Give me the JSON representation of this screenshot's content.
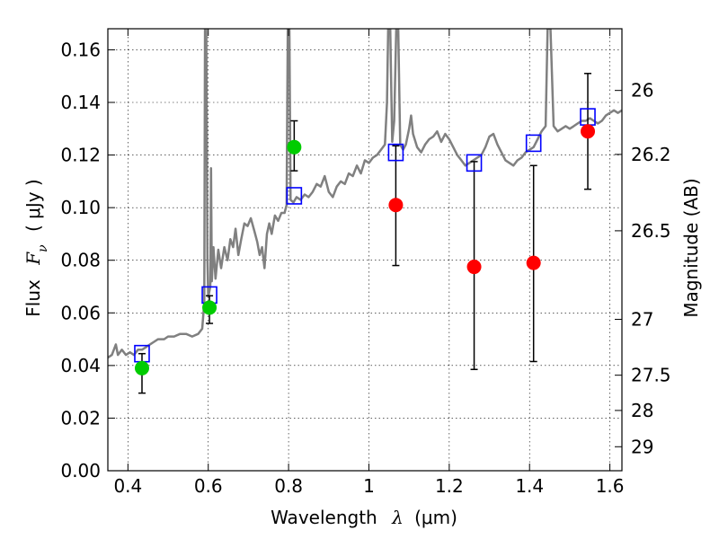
{
  "chart_data": {
    "type": "scatter",
    "xlabel": "Wavelength",
    "xlabel_symbol": "λ",
    "xlabel_unit": "(μm)",
    "ylabel": "Flux",
    "ylabel_symbol": "F_ν",
    "ylabel_unit": "( μJy )",
    "y2label": "Magnitude (AB)",
    "xlim": [
      0.35,
      1.63
    ],
    "ylim": [
      0.0,
      0.168
    ],
    "grid": true,
    "x_ticks": [
      {
        "value": 0.4,
        "label": "0.4"
      },
      {
        "value": 0.6,
        "label": "0.6"
      },
      {
        "value": 0.8,
        "label": "0.8"
      },
      {
        "value": 1.0,
        "label": "1"
      },
      {
        "value": 1.2,
        "label": "1.2"
      },
      {
        "value": 1.4,
        "label": "1.4"
      },
      {
        "value": 1.6,
        "label": "1.6"
      }
    ],
    "y_ticks": [
      {
        "value": 0.0,
        "label": "0.00"
      },
      {
        "value": 0.02,
        "label": "0.02"
      },
      {
        "value": 0.04,
        "label": "0.04"
      },
      {
        "value": 0.06,
        "label": "0.06"
      },
      {
        "value": 0.08,
        "label": "0.08"
      },
      {
        "value": 0.1,
        "label": "0.10"
      },
      {
        "value": 0.12,
        "label": "0.12"
      },
      {
        "value": 0.14,
        "label": "0.14"
      },
      {
        "value": 0.16,
        "label": "0.16"
      }
    ],
    "y2_ticks": [
      {
        "mag": 26.0,
        "label": "26"
      },
      {
        "mag": 26.2,
        "label": "26.2"
      },
      {
        "mag": 26.5,
        "label": "26.5"
      },
      {
        "mag": 27.0,
        "label": "27"
      },
      {
        "mag": 27.5,
        "label": "27.5"
      },
      {
        "mag": 28.0,
        "label": "28"
      },
      {
        "mag": 29.0,
        "label": "29"
      }
    ],
    "model_sed": {
      "color": "#808080",
      "points": [
        [
          0.35,
          0.043
        ],
        [
          0.36,
          0.044
        ],
        [
          0.37,
          0.048
        ],
        [
          0.375,
          0.044
        ],
        [
          0.385,
          0.046
        ],
        [
          0.395,
          0.044
        ],
        [
          0.405,
          0.045
        ],
        [
          0.415,
          0.044
        ],
        [
          0.425,
          0.046
        ],
        [
          0.435,
          0.046
        ],
        [
          0.445,
          0.047
        ],
        [
          0.455,
          0.048
        ],
        [
          0.465,
          0.049
        ],
        [
          0.475,
          0.05
        ],
        [
          0.49,
          0.05
        ],
        [
          0.5,
          0.051
        ],
        [
          0.515,
          0.051
        ],
        [
          0.53,
          0.052
        ],
        [
          0.545,
          0.052
        ],
        [
          0.56,
          0.051
        ],
        [
          0.575,
          0.052
        ],
        [
          0.585,
          0.054
        ],
        [
          0.59,
          0.064
        ],
        [
          0.592,
          0.168
        ],
        [
          0.595,
          0.168
        ],
        [
          0.598,
          0.08
        ],
        [
          0.6,
          0.066
        ],
        [
          0.605,
          0.07
        ],
        [
          0.607,
          0.115
        ],
        [
          0.609,
          0.072
        ],
        [
          0.613,
          0.085
        ],
        [
          0.618,
          0.073
        ],
        [
          0.625,
          0.084
        ],
        [
          0.632,
          0.077
        ],
        [
          0.64,
          0.085
        ],
        [
          0.648,
          0.08
        ],
        [
          0.655,
          0.088
        ],
        [
          0.662,
          0.085
        ],
        [
          0.668,
          0.092
        ],
        [
          0.675,
          0.082
        ],
        [
          0.682,
          0.088
        ],
        [
          0.69,
          0.094
        ],
        [
          0.698,
          0.093
        ],
        [
          0.706,
          0.096
        ],
        [
          0.715,
          0.091
        ],
        [
          0.722,
          0.087
        ],
        [
          0.728,
          0.082
        ],
        [
          0.734,
          0.085
        ],
        [
          0.74,
          0.077
        ],
        [
          0.746,
          0.09
        ],
        [
          0.752,
          0.094
        ],
        [
          0.758,
          0.09
        ],
        [
          0.766,
          0.097
        ],
        [
          0.774,
          0.095
        ],
        [
          0.782,
          0.098
        ],
        [
          0.79,
          0.098
        ],
        [
          0.795,
          0.101
        ],
        [
          0.798,
          0.168
        ],
        [
          0.802,
          0.168
        ],
        [
          0.805,
          0.103
        ],
        [
          0.812,
          0.102
        ],
        [
          0.82,
          0.104
        ],
        [
          0.83,
          0.103
        ],
        [
          0.84,
          0.105
        ],
        [
          0.85,
          0.104
        ],
        [
          0.86,
          0.106
        ],
        [
          0.87,
          0.109
        ],
        [
          0.88,
          0.108
        ],
        [
          0.89,
          0.112
        ],
        [
          0.9,
          0.106
        ],
        [
          0.91,
          0.104
        ],
        [
          0.92,
          0.108
        ],
        [
          0.93,
          0.11
        ],
        [
          0.94,
          0.109
        ],
        [
          0.95,
          0.113
        ],
        [
          0.96,
          0.112
        ],
        [
          0.97,
          0.116
        ],
        [
          0.98,
          0.113
        ],
        [
          0.99,
          0.118
        ],
        [
          1.0,
          0.117
        ],
        [
          1.01,
          0.119
        ],
        [
          1.02,
          0.12
        ],
        [
          1.03,
          0.122
        ],
        [
          1.04,
          0.124
        ],
        [
          1.045,
          0.14
        ],
        [
          1.048,
          0.168
        ],
        [
          1.053,
          0.168
        ],
        [
          1.058,
          0.125
        ],
        [
          1.063,
          0.133
        ],
        [
          1.068,
          0.168
        ],
        [
          1.073,
          0.168
        ],
        [
          1.078,
          0.124
        ],
        [
          1.085,
          0.122
        ],
        [
          1.092,
          0.124
        ],
        [
          1.1,
          0.13
        ],
        [
          1.105,
          0.135
        ],
        [
          1.11,
          0.128
        ],
        [
          1.12,
          0.123
        ],
        [
          1.13,
          0.121
        ],
        [
          1.14,
          0.124
        ],
        [
          1.15,
          0.126
        ],
        [
          1.16,
          0.127
        ],
        [
          1.17,
          0.129
        ],
        [
          1.18,
          0.125
        ],
        [
          1.19,
          0.128
        ],
        [
          1.2,
          0.126
        ],
        [
          1.21,
          0.123
        ],
        [
          1.22,
          0.12
        ],
        [
          1.23,
          0.118
        ],
        [
          1.24,
          0.116
        ],
        [
          1.25,
          0.117
        ],
        [
          1.26,
          0.118
        ],
        [
          1.27,
          0.119
        ],
        [
          1.28,
          0.12
        ],
        [
          1.29,
          0.123
        ],
        [
          1.3,
          0.127
        ],
        [
          1.31,
          0.128
        ],
        [
          1.32,
          0.124
        ],
        [
          1.33,
          0.121
        ],
        [
          1.34,
          0.118
        ],
        [
          1.35,
          0.117
        ],
        [
          1.36,
          0.116
        ],
        [
          1.37,
          0.118
        ],
        [
          1.38,
          0.119
        ],
        [
          1.39,
          0.121
        ],
        [
          1.4,
          0.122
        ],
        [
          1.41,
          0.123
        ],
        [
          1.42,
          0.126
        ],
        [
          1.43,
          0.129
        ],
        [
          1.44,
          0.131
        ],
        [
          1.445,
          0.168
        ],
        [
          1.452,
          0.168
        ],
        [
          1.46,
          0.131
        ],
        [
          1.47,
          0.129
        ],
        [
          1.48,
          0.13
        ],
        [
          1.49,
          0.131
        ],
        [
          1.5,
          0.13
        ],
        [
          1.51,
          0.131
        ],
        [
          1.52,
          0.132
        ],
        [
          1.53,
          0.133
        ],
        [
          1.54,
          0.133
        ],
        [
          1.55,
          0.134
        ],
        [
          1.56,
          0.133
        ],
        [
          1.57,
          0.132
        ],
        [
          1.58,
          0.133
        ],
        [
          1.59,
          0.135
        ],
        [
          1.6,
          0.136
        ],
        [
          1.61,
          0.137
        ],
        [
          1.62,
          0.136
        ],
        [
          1.63,
          0.137
        ]
      ]
    },
    "model_photometry": {
      "marker": "open-square",
      "color": "#0000ff",
      "points": [
        [
          0.435,
          0.0445
        ],
        [
          0.603,
          0.0668
        ],
        [
          0.814,
          0.1045
        ],
        [
          1.067,
          0.121
        ],
        [
          1.262,
          0.117
        ],
        [
          1.41,
          0.1245
        ],
        [
          1.545,
          0.1345
        ]
      ]
    },
    "detections": {
      "marker": "filled-circle",
      "color": "#00cc00",
      "points": [
        {
          "x": 0.435,
          "y": 0.039,
          "yerr_low": 0.0295,
          "yerr_high": 0.0445
        },
        {
          "x": 0.603,
          "y": 0.062,
          "yerr_low": 0.056,
          "yerr_high": 0.0665
        },
        {
          "x": 0.814,
          "y": 0.123,
          "yerr_low": 0.114,
          "yerr_high": 0.133
        }
      ]
    },
    "nondetections": {
      "marker": "filled-circle",
      "color": "#ff0000",
      "points": [
        {
          "x": 1.067,
          "y": 0.101,
          "yerr_low": 0.078,
          "yerr_high": 0.1235
        },
        {
          "x": 1.262,
          "y": 0.0775,
          "yerr_low": 0.0385,
          "yerr_high": 0.1175
        },
        {
          "x": 1.41,
          "y": 0.079,
          "yerr_low": 0.0415,
          "yerr_high": 0.116
        },
        {
          "x": 1.545,
          "y": 0.129,
          "yerr_low": 0.107,
          "yerr_high": 0.151
        }
      ]
    }
  }
}
